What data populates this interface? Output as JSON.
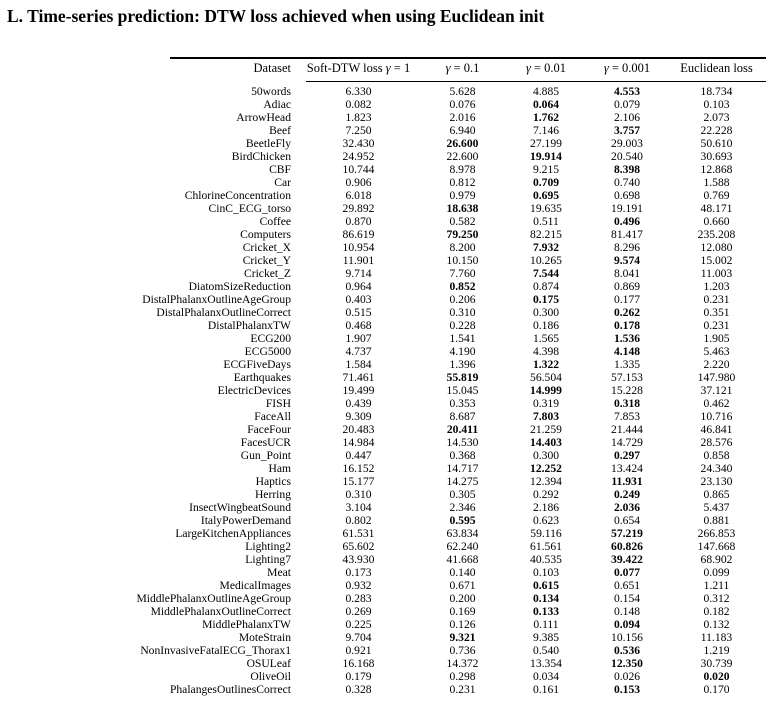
{
  "page": {
    "title": "L. Time-series prediction: DTW loss achieved when using Euclidean init"
  },
  "colors": {
    "text": "#000000",
    "background": "#ffffff"
  },
  "table": {
    "header": {
      "dataset": "Dataset",
      "cols": [
        "Soft-DTW loss γ = 1",
        "γ = 0.1",
        "γ = 0.01",
        "γ = 0.001",
        "Euclidean loss"
      ]
    },
    "rows": [
      {
        "name": "50words",
        "values": [
          "6.330",
          "5.628",
          "4.885",
          "4.553",
          "18.734"
        ],
        "bold": 3
      },
      {
        "name": "Adiac",
        "values": [
          "0.082",
          "0.076",
          "0.064",
          "0.079",
          "0.103"
        ],
        "bold": 2
      },
      {
        "name": "ArrowHead",
        "values": [
          "1.823",
          "2.016",
          "1.762",
          "2.106",
          "2.073"
        ],
        "bold": 2
      },
      {
        "name": "Beef",
        "values": [
          "7.250",
          "6.940",
          "7.146",
          "3.757",
          "22.228"
        ],
        "bold": 3
      },
      {
        "name": "BeetleFly",
        "values": [
          "32.430",
          "26.600",
          "27.199",
          "29.003",
          "50.610"
        ],
        "bold": 1
      },
      {
        "name": "BirdChicken",
        "values": [
          "24.952",
          "22.600",
          "19.914",
          "20.540",
          "30.693"
        ],
        "bold": 2
      },
      {
        "name": "CBF",
        "values": [
          "10.744",
          "8.978",
          "9.215",
          "8.398",
          "12.868"
        ],
        "bold": 3
      },
      {
        "name": "Car",
        "values": [
          "0.906",
          "0.812",
          "0.709",
          "0.740",
          "1.588"
        ],
        "bold": 2
      },
      {
        "name": "ChlorineConcentration",
        "values": [
          "6.018",
          "0.979",
          "0.695",
          "0.698",
          "0.769"
        ],
        "bold": 2
      },
      {
        "name": "CinC_ECG_torso",
        "values": [
          "29.892",
          "18.638",
          "19.635",
          "19.191",
          "48.171"
        ],
        "bold": 1
      },
      {
        "name": "Coffee",
        "values": [
          "0.870",
          "0.582",
          "0.511",
          "0.496",
          "0.660"
        ],
        "bold": 3
      },
      {
        "name": "Computers",
        "values": [
          "86.619",
          "79.250",
          "82.215",
          "81.417",
          "235.208"
        ],
        "bold": 1
      },
      {
        "name": "Cricket_X",
        "values": [
          "10.954",
          "8.200",
          "7.932",
          "8.296",
          "12.080"
        ],
        "bold": 2
      },
      {
        "name": "Cricket_Y",
        "values": [
          "11.901",
          "10.150",
          "10.265",
          "9.574",
          "15.002"
        ],
        "bold": 3
      },
      {
        "name": "Cricket_Z",
        "values": [
          "9.714",
          "7.760",
          "7.544",
          "8.041",
          "11.003"
        ],
        "bold": 2
      },
      {
        "name": "DiatomSizeReduction",
        "values": [
          "0.964",
          "0.852",
          "0.874",
          "0.869",
          "1.203"
        ],
        "bold": 1
      },
      {
        "name": "DistalPhalanxOutlineAgeGroup",
        "values": [
          "0.403",
          "0.206",
          "0.175",
          "0.177",
          "0.231"
        ],
        "bold": 2
      },
      {
        "name": "DistalPhalanxOutlineCorrect",
        "values": [
          "0.515",
          "0.310",
          "0.300",
          "0.262",
          "0.351"
        ],
        "bold": 3
      },
      {
        "name": "DistalPhalanxTW",
        "values": [
          "0.468",
          "0.228",
          "0.186",
          "0.178",
          "0.231"
        ],
        "bold": 3
      },
      {
        "name": "ECG200",
        "values": [
          "1.907",
          "1.541",
          "1.565",
          "1.536",
          "1.905"
        ],
        "bold": 3
      },
      {
        "name": "ECG5000",
        "values": [
          "4.737",
          "4.190",
          "4.398",
          "4.148",
          "5.463"
        ],
        "bold": 3
      },
      {
        "name": "ECGFiveDays",
        "values": [
          "1.584",
          "1.396",
          "1.322",
          "1.335",
          "2.220"
        ],
        "bold": 2
      },
      {
        "name": "Earthquakes",
        "values": [
          "71.461",
          "55.819",
          "56.504",
          "57.153",
          "147.980"
        ],
        "bold": 1
      },
      {
        "name": "ElectricDevices",
        "values": [
          "19.499",
          "15.045",
          "14.999",
          "15.228",
          "37.121"
        ],
        "bold": 2
      },
      {
        "name": "FISH",
        "values": [
          "0.439",
          "0.353",
          "0.319",
          "0.318",
          "0.462"
        ],
        "bold": 3
      },
      {
        "name": "FaceAll",
        "values": [
          "9.309",
          "8.687",
          "7.803",
          "7.853",
          "10.716"
        ],
        "bold": 2
      },
      {
        "name": "FaceFour",
        "values": [
          "20.483",
          "20.411",
          "21.259",
          "21.444",
          "46.841"
        ],
        "bold": 1
      },
      {
        "name": "FacesUCR",
        "values": [
          "14.984",
          "14.530",
          "14.403",
          "14.729",
          "28.576"
        ],
        "bold": 2
      },
      {
        "name": "Gun_Point",
        "values": [
          "0.447",
          "0.368",
          "0.300",
          "0.297",
          "0.858"
        ],
        "bold": 3
      },
      {
        "name": "Ham",
        "values": [
          "16.152",
          "14.717",
          "12.252",
          "13.424",
          "24.340"
        ],
        "bold": 2
      },
      {
        "name": "Haptics",
        "values": [
          "15.177",
          "14.275",
          "12.394",
          "11.931",
          "23.130"
        ],
        "bold": 3
      },
      {
        "name": "Herring",
        "values": [
          "0.310",
          "0.305",
          "0.292",
          "0.249",
          "0.865"
        ],
        "bold": 3
      },
      {
        "name": "InsectWingbeatSound",
        "values": [
          "3.104",
          "2.346",
          "2.186",
          "2.036",
          "5.437"
        ],
        "bold": 3
      },
      {
        "name": "ItalyPowerDemand",
        "values": [
          "0.802",
          "0.595",
          "0.623",
          "0.654",
          "0.881"
        ],
        "bold": 1
      },
      {
        "name": "LargeKitchenAppliances",
        "values": [
          "61.531",
          "63.834",
          "59.116",
          "57.219",
          "266.853"
        ],
        "bold": 3
      },
      {
        "name": "Lighting2",
        "values": [
          "65.602",
          "62.240",
          "61.561",
          "60.826",
          "147.668"
        ],
        "bold": 3
      },
      {
        "name": "Lighting7",
        "values": [
          "43.930",
          "41.668",
          "40.535",
          "39.422",
          "68.902"
        ],
        "bold": 3
      },
      {
        "name": "Meat",
        "values": [
          "0.173",
          "0.140",
          "0.103",
          "0.077",
          "0.099"
        ],
        "bold": 3
      },
      {
        "name": "MedicalImages",
        "values": [
          "0.932",
          "0.671",
          "0.615",
          "0.651",
          "1.211"
        ],
        "bold": 2
      },
      {
        "name": "MiddlePhalanxOutlineAgeGroup",
        "values": [
          "0.283",
          "0.200",
          "0.134",
          "0.154",
          "0.312"
        ],
        "bold": 2
      },
      {
        "name": "MiddlePhalanxOutlineCorrect",
        "values": [
          "0.269",
          "0.169",
          "0.133",
          "0.148",
          "0.182"
        ],
        "bold": 2
      },
      {
        "name": "MiddlePhalanxTW",
        "values": [
          "0.225",
          "0.126",
          "0.111",
          "0.094",
          "0.132"
        ],
        "bold": 3
      },
      {
        "name": "MoteStrain",
        "values": [
          "9.704",
          "9.321",
          "9.385",
          "10.156",
          "11.183"
        ],
        "bold": 1
      },
      {
        "name": "NonInvasiveFatalECG_Thorax1",
        "values": [
          "0.921",
          "0.736",
          "0.540",
          "0.536",
          "1.219"
        ],
        "bold": 3
      },
      {
        "name": "OSULeaf",
        "values": [
          "16.168",
          "14.372",
          "13.354",
          "12.350",
          "30.739"
        ],
        "bold": 3
      },
      {
        "name": "OliveOil",
        "values": [
          "0.179",
          "0.298",
          "0.034",
          "0.026",
          "0.020"
        ],
        "bold": 4
      },
      {
        "name": "PhalangesOutlinesCorrect",
        "values": [
          "0.328",
          "0.231",
          "0.161",
          "0.153",
          "0.170"
        ],
        "bold": 3
      }
    ]
  }
}
